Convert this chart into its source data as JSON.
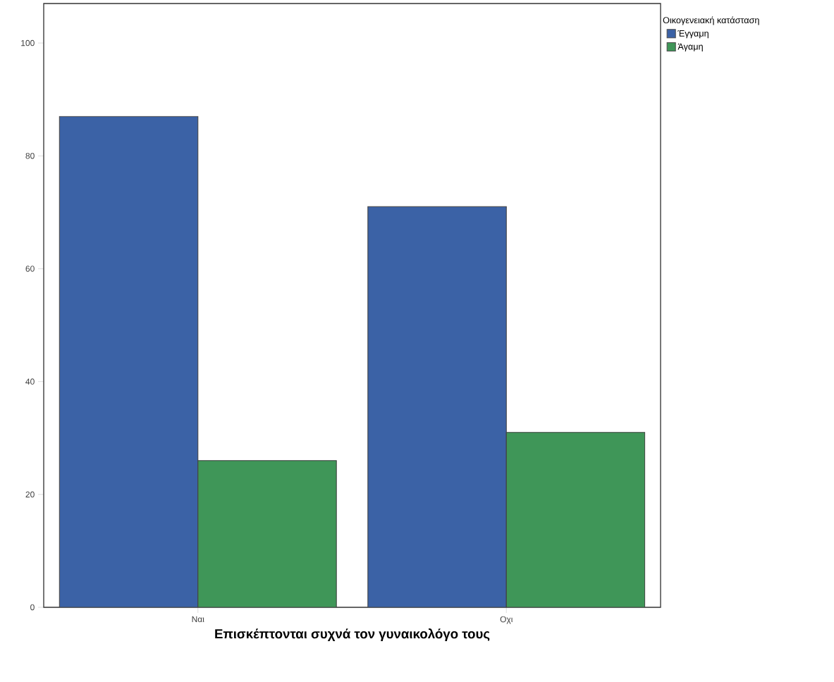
{
  "chart_data": {
    "type": "bar",
    "xlabel": "Επισκέπτονται συχνά τον γυναικολόγο τους",
    "legend_title": "Οικογενειακή κατάσταση",
    "categories": [
      "Ναι",
      "Οχι"
    ],
    "series": [
      {
        "name": "Έγγαμη",
        "color": "#3b62a6",
        "values": [
          87,
          71
        ]
      },
      {
        "name": "Άγαμη",
        "color": "#3f9658",
        "values": [
          26,
          31
        ]
      }
    ],
    "ylim": [
      0,
      107
    ],
    "yticks": [
      0,
      20,
      40,
      60,
      80,
      100
    ],
    "grid": false,
    "legend": "top right"
  }
}
